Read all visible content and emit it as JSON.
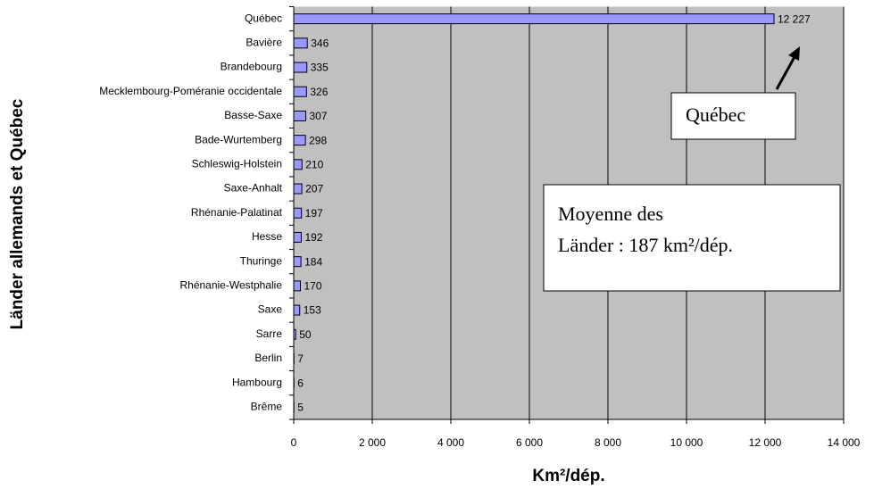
{
  "chart_data": {
    "type": "bar",
    "orientation": "horizontal",
    "x_label": "Km²/dép.",
    "y_label": "Länder allemands et Québec",
    "categories": [
      "Québec",
      "Bavière",
      "Brandebourg",
      "Mecklembourg-Poméranie occidentale",
      "Basse-Saxe",
      "Bade-Wurtemberg",
      "Schleswig-Holstein",
      "Saxe-Anhalt",
      "Rhénanie-Palatinat",
      "Hesse",
      "Thuringe",
      "Rhénanie-Westphalie",
      "Saxe",
      "Sarre",
      "Berlin",
      "Hambourg",
      "Brême"
    ],
    "values": [
      12227,
      346,
      335,
      326,
      307,
      298,
      210,
      207,
      197,
      192,
      184,
      170,
      153,
      50,
      7,
      6,
      5
    ],
    "value_labels": [
      "12 227",
      "346",
      "335",
      "326",
      "307",
      "298",
      "210",
      "207",
      "197",
      "192",
      "184",
      "170",
      "153",
      "50",
      "7",
      "6",
      "5"
    ],
    "color": "#9999ff",
    "xlim": [
      0,
      14000
    ],
    "xticks": [
      0,
      {
        "value": 2000,
        "label": "2 000"
      },
      {
        "value": 4000,
        "label": "4 000"
      },
      {
        "value": 6000,
        "label": "6 000"
      },
      {
        "value": 8000,
        "label": "8 000"
      },
      {
        "value": 10000,
        "label": "10 000"
      },
      {
        "value": 12000,
        "label": "12 000"
      },
      {
        "value": 14000,
        "label": "14 000"
      }
    ],
    "grid": true,
    "annotations": [
      {
        "lines": [
          "Québec"
        ]
      },
      {
        "lines": [
          "Moyenne des",
          "Länder : 187 km²/dép."
        ]
      }
    ]
  }
}
